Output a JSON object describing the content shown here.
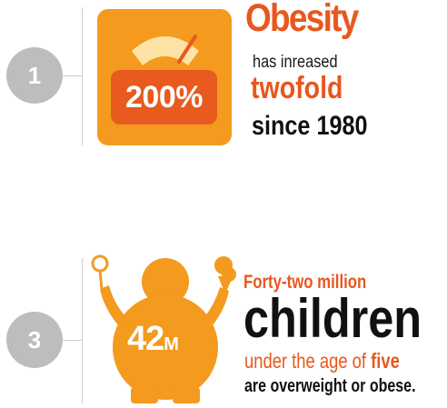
{
  "stat1": {
    "number": "1",
    "percent": "200%",
    "title": "Obesity",
    "sub": "has inreased",
    "word": "twofold",
    "since": "since 1980",
    "gauge_level": 0.78
  },
  "stat3": {
    "number": "3",
    "figure_value": "42",
    "figure_unit": "M",
    "headline": "Forty-two million",
    "big_word": "children",
    "age_prefix": "under the age of",
    "age_word": "five",
    "tail": "are overweight or obese."
  },
  "colors": {
    "orange": "#f39a1f",
    "red_orange": "#e9571e",
    "gray": "#bdbdbd",
    "dark": "#111111"
  },
  "icons": [
    "scale-gauge-icon",
    "child-figure-icon",
    "rattle-icon",
    "ice-cream-icon"
  ]
}
